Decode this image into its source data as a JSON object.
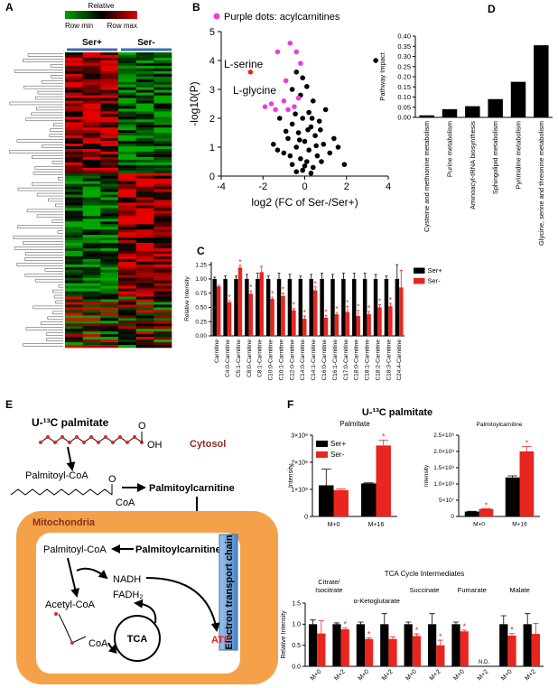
{
  "panel_labels": [
    "A",
    "B",
    "C",
    "D",
    "E",
    "F"
  ],
  "heatmap": {
    "scale_title": "Relative",
    "scale_min": "Row min",
    "scale_max": "Row max",
    "groups": [
      "Ser+",
      "Ser-"
    ]
  },
  "volcano": {
    "type": "scatter",
    "xlabel": "log2 (FC of Ser-/Ser+)",
    "ylabel": "-log10(P)",
    "annotations": [
      "L-serine",
      "L-glycine"
    ],
    "xlim": [
      -4,
      4
    ],
    "ylim": [
      0,
      5
    ],
    "xticks": [
      -4,
      -2,
      0,
      2,
      4
    ],
    "yticks": [
      0,
      1,
      2,
      3,
      4,
      5
    ],
    "series": [
      {
        "color": "#000000",
        "x": [
          -0.4,
          -0.1,
          3.4,
          -0.6,
          0.1,
          -0.2,
          0.4,
          1.0,
          -1.2,
          0.2,
          -0.1,
          0.7,
          1.4,
          1.9,
          -0.6,
          0.3,
          -0.3,
          0.5,
          -0.8,
          0.0,
          0.9,
          -0.4,
          0.2,
          -1.0,
          0.6,
          -0.2,
          0.1,
          -0.6,
          0.4,
          -0.1,
          0.3,
          -0.4,
          0.8,
          -1.3,
          1.2,
          -0.7,
          0.0,
          0.55,
          -0.25,
          0.15,
          -0.9,
          0.75,
          1.6,
          -1.5,
          0.35,
          -0.45
        ],
        "y": [
          3.6,
          3.4,
          4.0,
          3.0,
          3.1,
          2.8,
          2.6,
          2.3,
          2.0,
          2.2,
          2.0,
          1.9,
          1.3,
          0.4,
          1.8,
          1.7,
          1.5,
          1.4,
          1.3,
          1.2,
          1.1,
          1.0,
          0.9,
          0.8,
          0.7,
          0.6,
          0.5,
          0.4,
          0.3,
          0.2,
          0.1,
          0.15,
          0.5,
          0.9,
          0.8,
          0.7,
          0.35,
          1.05,
          1.25,
          1.6,
          1.55,
          1.6,
          1.0,
          1.1,
          2.0,
          2.15
        ]
      },
      {
        "name": "Purple dots: acylcarnitines",
        "color": "#e83ee0",
        "x": [
          -1.3,
          -0.7,
          -0.4,
          -0.2,
          -1.6,
          -1.4,
          -1.0,
          -0.8,
          -1.9,
          -0.3,
          -0.5,
          -0.9
        ],
        "y": [
          4.3,
          4.6,
          4.3,
          3.9,
          2.5,
          2.3,
          2.6,
          2.3,
          2.4,
          2.7,
          2.4,
          3.3
        ]
      },
      {
        "color": "#e8251f",
        "x": [
          -2.6
        ],
        "y": [
          3.6
        ]
      }
    ]
  },
  "acylcarnitines": {
    "type": "bar",
    "ylabel": "Relative Intensity",
    "categories": [
      "Carnitine",
      "C4:0-Carnitine",
      "C5:1-Carnitine",
      "C8:0-Carnitine",
      "C8:1-Carnitine",
      "C10:0-Carnitine",
      "C10:1-Carnitine",
      "C12:0-Carnitine",
      "C14:0-Carnitine",
      "C14:1-Carnitine",
      "C16:0-Carnitine",
      "C16:1-Carnitine",
      "C17:0-Carnitine",
      "C18:0-Carnitine",
      "C18:1-Carnitine",
      "C18:2-Carnitine",
      "C18:3-Carnitine",
      "C24:4-Carnitine"
    ],
    "ylim": [
      0,
      1.3
    ],
    "yticks": [
      {
        "value": 0,
        "label": "0.00"
      },
      {
        "value": 0.25,
        "label": "0.25"
      },
      {
        "value": 0.5,
        "label": "0.50"
      },
      {
        "value": 0.75,
        "label": "0.75"
      },
      {
        "value": 1,
        "label": "1.00"
      },
      {
        "value": 1.25,
        "label": "1.25"
      }
    ],
    "series": [
      {
        "name": "Ser+",
        "color": "#000000",
        "values": [
          1,
          1,
          1,
          1,
          1,
          1,
          1,
          1,
          1,
          1,
          1,
          1,
          1,
          1,
          1,
          1,
          1,
          1
        ],
        "errors": [
          0.03,
          0.05,
          0.05,
          0.08,
          0.1,
          0.05,
          0.1,
          0.08,
          0.05,
          0.08,
          0.1,
          0.08,
          0.1,
          0.1,
          0.1,
          0.08,
          0.05,
          0.25
        ]
      },
      {
        "name": "Ser-",
        "color": "#e8251f",
        "values": [
          0.87,
          0.59,
          1.2,
          0.74,
          1.12,
          0.65,
          0.7,
          0.45,
          0.3,
          0.8,
          0.32,
          0.38,
          0.42,
          0.35,
          0.38,
          0.5,
          0.52,
          0.85
        ],
        "errors": [
          0.02,
          0.03,
          0.04,
          0.05,
          0.1,
          0.03,
          0.05,
          0.03,
          0.05,
          0.06,
          0.04,
          0.03,
          0.1,
          0.1,
          0.05,
          0.05,
          0.05,
          0.3
        ],
        "stars": [
          null,
          "*",
          "*",
          "*",
          null,
          "*",
          "*",
          "*",
          "*",
          "*",
          "*",
          "*",
          "*",
          "*",
          "*",
          "*",
          "*",
          null
        ]
      }
    ]
  },
  "pathway": {
    "type": "bar",
    "ylabel": "Pathway Impact",
    "categories": [
      "Cysteine and methionine metabolism",
      "Purine metabolism",
      "Aminoacyl-tRNA biosynthesis",
      "Sphingolipid metabolism",
      "Pyrimidine metabolism",
      "Glycine, serine and threonine metabolism"
    ],
    "ylim": [
      0,
      0.4
    ],
    "yticks": [
      {
        "value": 0,
        "label": "0.00"
      },
      0.05,
      {
        "value": 0.1,
        "label": "0.10"
      },
      0.15,
      {
        "value": 0.2,
        "label": "0.20"
      },
      0.25,
      {
        "value": 0.3,
        "label": "0.30"
      },
      0.35,
      {
        "value": 0.4,
        "label": "0.40"
      }
    ],
    "series": [
      {
        "color": "#000000",
        "values": [
          0.01,
          0.04,
          0.055,
          0.09,
          0.175,
          0.355
        ]
      }
    ]
  },
  "diagram": {
    "substrate": "U-¹³C palmitate",
    "oh": "OH",
    "cytosol": "Cytosol",
    "acyl_coa": "Palmitoyl-CoA",
    "o1": "O",
    "o2": "O",
    "coa": "CoA",
    "carnitine": "Palmitoylcarnitine",
    "mito": "Mitochondria",
    "acyl_coa_in": "Palmitoyl-CoA",
    "carnitine_in": "Palmitoylcarnitine",
    "nadh": "NADH",
    "fadh": "FADH₂",
    "acetyl": "Acetyl-CoA",
    "coa2": "CoA",
    "tca": "TCA",
    "atp": "ATP",
    "etc": "Electron transport chain"
  },
  "isotope": {
    "title": "U-¹³C palmitate",
    "palmitate": {
      "type": "bar",
      "title": "Palmitate",
      "ylabel": "Intensity",
      "categories": [
        "M+0",
        "M+16"
      ],
      "ylim": [
        0,
        300000000
      ],
      "yticks": [
        0,
        {
          "value": 100000000,
          "label": "1×10⁸"
        },
        {
          "value": 200000000,
          "label": "2×10⁸"
        },
        {
          "value": 300000000,
          "label": "3×10⁸"
        }
      ],
      "series": [
        {
          "name": "Ser+",
          "color": "#000000",
          "values": [
            115000000,
            122000000
          ],
          "errors": [
            60000000,
            2000000
          ]
        },
        {
          "name": "Ser-",
          "color": "#e8251f",
          "values": [
            97000000,
            262000000
          ],
          "errors": [
            4000000,
            20000000
          ],
          "stars": [
            null,
            "*"
          ]
        }
      ]
    },
    "palmitoylcarnitine": {
      "type": "bar",
      "title": "Palmitoylcarnitine",
      "ylabel": "Intensity",
      "categories": [
        "M+0",
        "M+16"
      ],
      "ylim": [
        0,
        250000000
      ],
      "yticks": [
        0,
        {
          "value": 50000000,
          "label": "5×10⁷"
        },
        {
          "value": 100000000,
          "label": "1.0×10⁸"
        },
        {
          "value": 150000000,
          "label": "1.5×10⁸"
        },
        {
          "value": 200000000,
          "label": "2.0×10⁸"
        },
        {
          "value": 250000000,
          "label": "2.5×10⁸"
        }
      ],
      "series": [
        {
          "name": "Ser+",
          "color": "#000000",
          "values": [
            15000000,
            120000000
          ],
          "errors": [
            1000000,
            5000000
          ]
        },
        {
          "name": "Ser-",
          "color": "#e8251f",
          "values": [
            23000000,
            200000000
          ],
          "errors": [
            1000000,
            15000000
          ],
          "stars": [
            "*",
            "*"
          ]
        }
      ]
    },
    "tca": {
      "type": "bar",
      "title": "TCA Cycle Intermediates",
      "ylabel": "Relative Intensity",
      "nd": "N.D.",
      "groups": [
        [
          "Citrate/",
          "Isocitrate"
        ],
        [
          "α-Ketoglutarate"
        ],
        [
          "Succinate"
        ],
        [
          "Fumarate"
        ],
        [
          "Malate"
        ]
      ],
      "categories": [
        "M+0",
        "M+2",
        "M+0",
        "M+2",
        "M+0",
        "M+2",
        "M+0",
        "M+2",
        "M+0",
        "M+2"
      ],
      "ylim": [
        0,
        1.5
      ],
      "yticks": [
        {
          "value": 0,
          "label": "0.0"
        },
        {
          "value": 0.5,
          "label": "0.5"
        },
        {
          "value": 1,
          "label": "1.0"
        },
        1.5
      ],
      "series": [
        {
          "name": "Ser+",
          "color": "#000000",
          "values": [
            1,
            1,
            1,
            1,
            1,
            1,
            1,
            null,
            1,
            1
          ],
          "errors": [
            0.1,
            0.03,
            0.05,
            0.25,
            0.05,
            0.25,
            0.05,
            null,
            0.2,
            0.25
          ]
        },
        {
          "name": "Ser-",
          "color": "#e8251f",
          "values": [
            0.78,
            0.88,
            0.65,
            0.65,
            0.72,
            0.5,
            0.83,
            null,
            0.73,
            0.77
          ],
          "errors": [
            0.3,
            0.03,
            0.03,
            0.05,
            0.05,
            0.12,
            0.03,
            null,
            0.05,
            0.25
          ],
          "stars": [
            null,
            "*",
            "*",
            null,
            "*",
            "*",
            "*",
            null,
            "*",
            null
          ]
        }
      ]
    }
  }
}
